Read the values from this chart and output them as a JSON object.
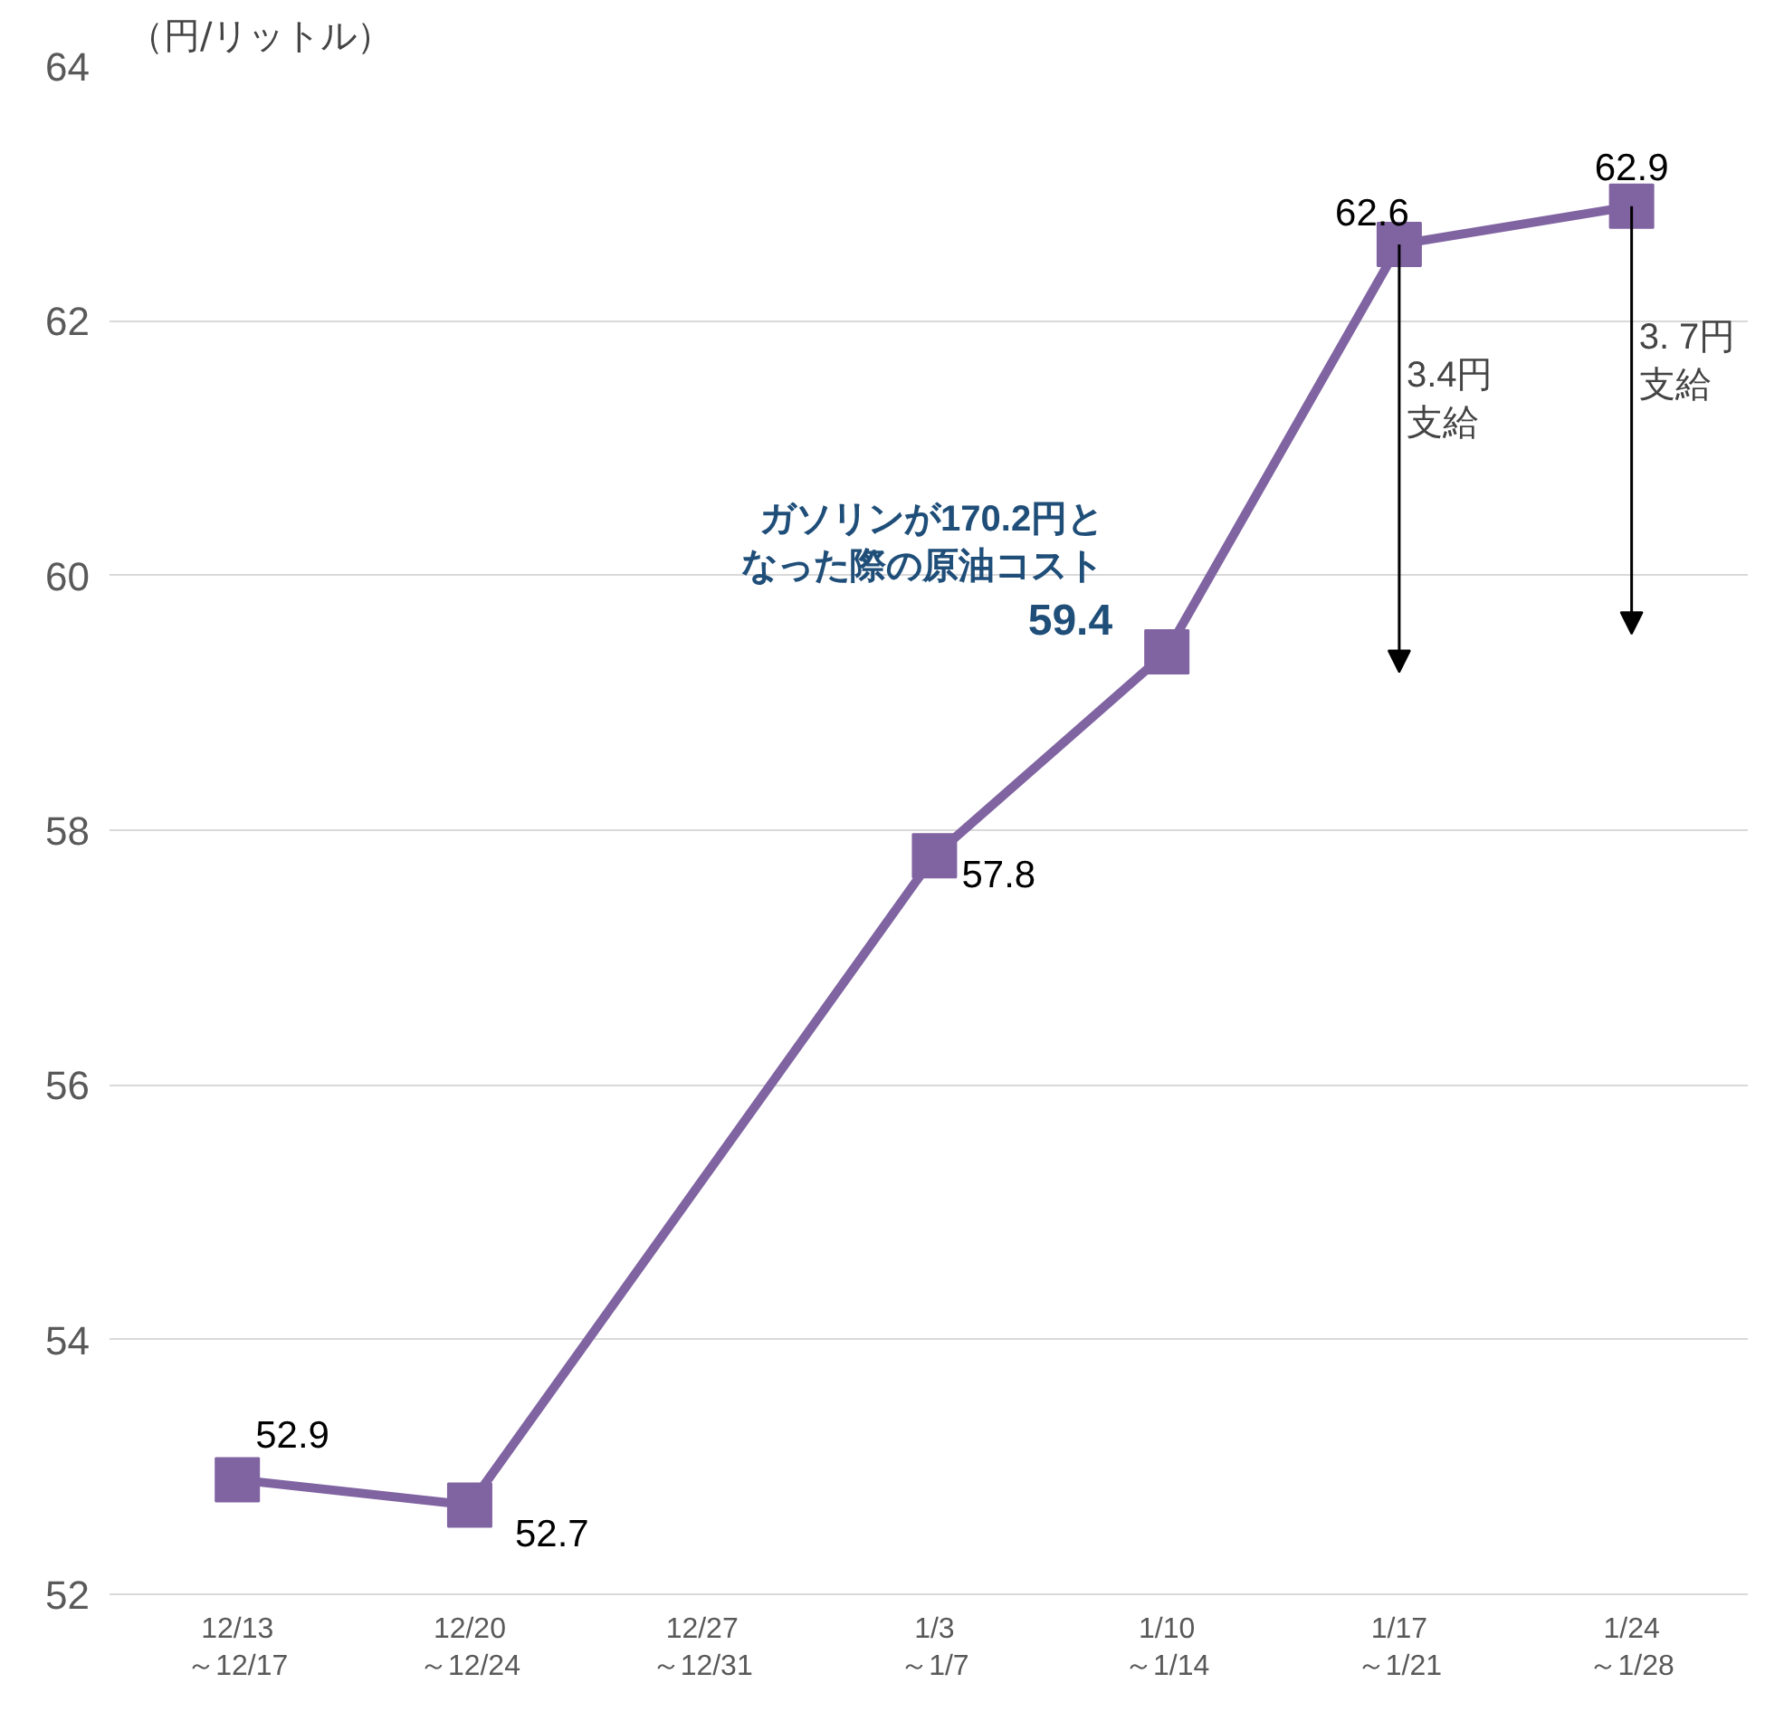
{
  "chart_data": {
    "type": "line",
    "ylabel": "（円/リットル）",
    "categories": [
      "12/13\n～12/17",
      "12/20\n～12/24",
      "12/27\n～12/31",
      "1/3\n～1/7",
      "1/10\n～1/14",
      "1/17\n～1/21",
      "1/24\n～1/28"
    ],
    "series": [
      {
        "color": "#8064a2",
        "values": [
          52.9,
          52.7,
          null,
          57.8,
          59.4,
          62.6,
          62.9
        ]
      }
    ],
    "ylim": [
      52,
      64
    ],
    "yticks": [
      52,
      54,
      56,
      58,
      60,
      62,
      64
    ],
    "grid": "y",
    "marker": "square",
    "line_style": "solid",
    "data_labels": true,
    "annotations": [
      "ガソリンが170.2円となった際の原油コスト",
      "3.4円支給",
      "3. 7円支給"
    ]
  }
}
